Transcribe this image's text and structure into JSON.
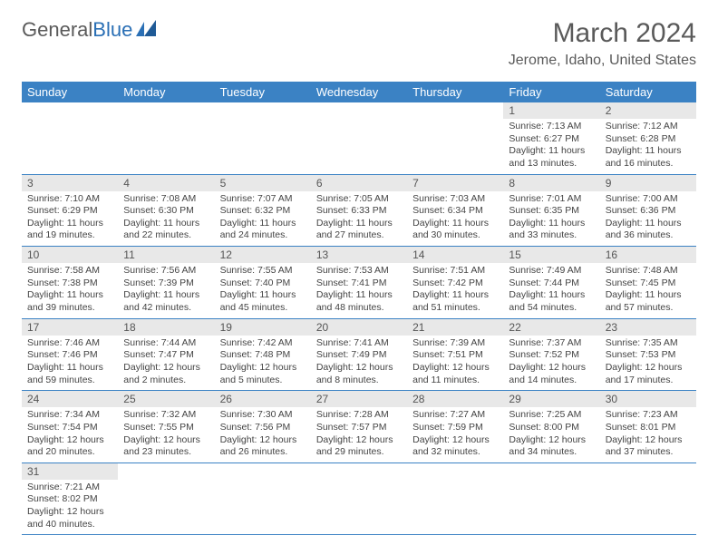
{
  "logo": {
    "text1": "General",
    "text2": "Blue"
  },
  "title": "March 2024",
  "location": "Jerome, Idaho, United States",
  "colors": {
    "header_bg": "#3b82c4",
    "header_text": "#ffffff",
    "daynum_bg": "#e8e8e8",
    "border": "#3b82c4",
    "text": "#444444",
    "title_color": "#5a5a5a"
  },
  "weekdays": [
    "Sunday",
    "Monday",
    "Tuesday",
    "Wednesday",
    "Thursday",
    "Friday",
    "Saturday"
  ],
  "weeks": [
    [
      null,
      null,
      null,
      null,
      null,
      {
        "n": "1",
        "sr": "7:13 AM",
        "ss": "6:27 PM",
        "dl": "11 hours and 13 minutes."
      },
      {
        "n": "2",
        "sr": "7:12 AM",
        "ss": "6:28 PM",
        "dl": "11 hours and 16 minutes."
      }
    ],
    [
      {
        "n": "3",
        "sr": "7:10 AM",
        "ss": "6:29 PM",
        "dl": "11 hours and 19 minutes."
      },
      {
        "n": "4",
        "sr": "7:08 AM",
        "ss": "6:30 PM",
        "dl": "11 hours and 22 minutes."
      },
      {
        "n": "5",
        "sr": "7:07 AM",
        "ss": "6:32 PM",
        "dl": "11 hours and 24 minutes."
      },
      {
        "n": "6",
        "sr": "7:05 AM",
        "ss": "6:33 PM",
        "dl": "11 hours and 27 minutes."
      },
      {
        "n": "7",
        "sr": "7:03 AM",
        "ss": "6:34 PM",
        "dl": "11 hours and 30 minutes."
      },
      {
        "n": "8",
        "sr": "7:01 AM",
        "ss": "6:35 PM",
        "dl": "11 hours and 33 minutes."
      },
      {
        "n": "9",
        "sr": "7:00 AM",
        "ss": "6:36 PM",
        "dl": "11 hours and 36 minutes."
      }
    ],
    [
      {
        "n": "10",
        "sr": "7:58 AM",
        "ss": "7:38 PM",
        "dl": "11 hours and 39 minutes."
      },
      {
        "n": "11",
        "sr": "7:56 AM",
        "ss": "7:39 PM",
        "dl": "11 hours and 42 minutes."
      },
      {
        "n": "12",
        "sr": "7:55 AM",
        "ss": "7:40 PM",
        "dl": "11 hours and 45 minutes."
      },
      {
        "n": "13",
        "sr": "7:53 AM",
        "ss": "7:41 PM",
        "dl": "11 hours and 48 minutes."
      },
      {
        "n": "14",
        "sr": "7:51 AM",
        "ss": "7:42 PM",
        "dl": "11 hours and 51 minutes."
      },
      {
        "n": "15",
        "sr": "7:49 AM",
        "ss": "7:44 PM",
        "dl": "11 hours and 54 minutes."
      },
      {
        "n": "16",
        "sr": "7:48 AM",
        "ss": "7:45 PM",
        "dl": "11 hours and 57 minutes."
      }
    ],
    [
      {
        "n": "17",
        "sr": "7:46 AM",
        "ss": "7:46 PM",
        "dl": "11 hours and 59 minutes."
      },
      {
        "n": "18",
        "sr": "7:44 AM",
        "ss": "7:47 PM",
        "dl": "12 hours and 2 minutes."
      },
      {
        "n": "19",
        "sr": "7:42 AM",
        "ss": "7:48 PM",
        "dl": "12 hours and 5 minutes."
      },
      {
        "n": "20",
        "sr": "7:41 AM",
        "ss": "7:49 PM",
        "dl": "12 hours and 8 minutes."
      },
      {
        "n": "21",
        "sr": "7:39 AM",
        "ss": "7:51 PM",
        "dl": "12 hours and 11 minutes."
      },
      {
        "n": "22",
        "sr": "7:37 AM",
        "ss": "7:52 PM",
        "dl": "12 hours and 14 minutes."
      },
      {
        "n": "23",
        "sr": "7:35 AM",
        "ss": "7:53 PM",
        "dl": "12 hours and 17 minutes."
      }
    ],
    [
      {
        "n": "24",
        "sr": "7:34 AM",
        "ss": "7:54 PM",
        "dl": "12 hours and 20 minutes."
      },
      {
        "n": "25",
        "sr": "7:32 AM",
        "ss": "7:55 PM",
        "dl": "12 hours and 23 minutes."
      },
      {
        "n": "26",
        "sr": "7:30 AM",
        "ss": "7:56 PM",
        "dl": "12 hours and 26 minutes."
      },
      {
        "n": "27",
        "sr": "7:28 AM",
        "ss": "7:57 PM",
        "dl": "12 hours and 29 minutes."
      },
      {
        "n": "28",
        "sr": "7:27 AM",
        "ss": "7:59 PM",
        "dl": "12 hours and 32 minutes."
      },
      {
        "n": "29",
        "sr": "7:25 AM",
        "ss": "8:00 PM",
        "dl": "12 hours and 34 minutes."
      },
      {
        "n": "30",
        "sr": "7:23 AM",
        "ss": "8:01 PM",
        "dl": "12 hours and 37 minutes."
      }
    ],
    [
      {
        "n": "31",
        "sr": "7:21 AM",
        "ss": "8:02 PM",
        "dl": "12 hours and 40 minutes."
      },
      null,
      null,
      null,
      null,
      null,
      null
    ]
  ],
  "labels": {
    "sunrise": "Sunrise:",
    "sunset": "Sunset:",
    "daylight": "Daylight:"
  }
}
